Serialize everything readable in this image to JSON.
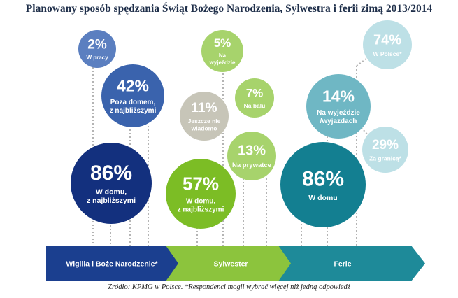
{
  "title": "Planowany sposób spędzania Świąt Bożego Narodzenia, Sylwestra i ferii zimą 2013/2014",
  "footnote": "Źródło: KPMG w Polsce. *Respondenci mogli wybrać więcej niż jedną odpowiedź",
  "chart_data": {
    "type": "bubble",
    "title": "Planowany sposób spędzania Świąt Bożego Narodzenia, Sylwestra i ferii zimą 2013/2014",
    "note": "Respondenci mogli wybrać więcej niż jedną odpowiedź",
    "categories": [
      {
        "name": "Wigilia i Boże Narodzenie*",
        "color": "#1b3f8f"
      },
      {
        "name": "Sylwester",
        "color": "#8cc43d"
      },
      {
        "name": "Ferie",
        "color": "#1e8a99"
      }
    ],
    "bubbles": [
      {
        "category": "Wigilia i Boże Narodzenie*",
        "value": "2%",
        "label": [
          "W pracy"
        ],
        "color": "#5b7fc0"
      },
      {
        "category": "Wigilia i Boże Narodzenie*",
        "value": "42%",
        "label": [
          "Poza domem,",
          "z najbliższymi"
        ],
        "color": "#3a63ad"
      },
      {
        "category": "Wigilia i Boże Narodzenie*",
        "value": "86%",
        "label": [
          "W domu,",
          "z najbliższymi"
        ],
        "color": "#13307e"
      },
      {
        "category": "Sylwester",
        "value": "5%",
        "label": [
          "Na",
          "wyjeździe"
        ],
        "color": "#a7d36c"
      },
      {
        "category": "Sylwester",
        "value": "7%",
        "label": [
          "Na balu"
        ],
        "color": "#a7d36c"
      },
      {
        "category": "Sylwester",
        "value": "11%",
        "label": [
          "Jeszcze nie",
          "wiadomo"
        ],
        "color": "#c7c5b8"
      },
      {
        "category": "Sylwester",
        "value": "13%",
        "label": [
          "Na prywatce"
        ],
        "color": "#a7d36c"
      },
      {
        "category": "Sylwester",
        "value": "57%",
        "label": [
          "W domu,",
          "z najbliższymi"
        ],
        "color": "#7cbd25"
      },
      {
        "category": "Ferie",
        "value": "74%",
        "label": [
          "W Polsce*"
        ],
        "color": "#bde0e6"
      },
      {
        "category": "Ferie",
        "value": "14%",
        "label": [
          "Na wyjeździe",
          "/wyjazdach"
        ],
        "color": "#6fb7c4"
      },
      {
        "category": "Ferie",
        "value": "29%",
        "label": [
          "Za granicą*"
        ],
        "color": "#bde0e6"
      },
      {
        "category": "Ferie",
        "value": "86%",
        "label": [
          "W domu"
        ],
        "color": "#137f91"
      }
    ]
  }
}
